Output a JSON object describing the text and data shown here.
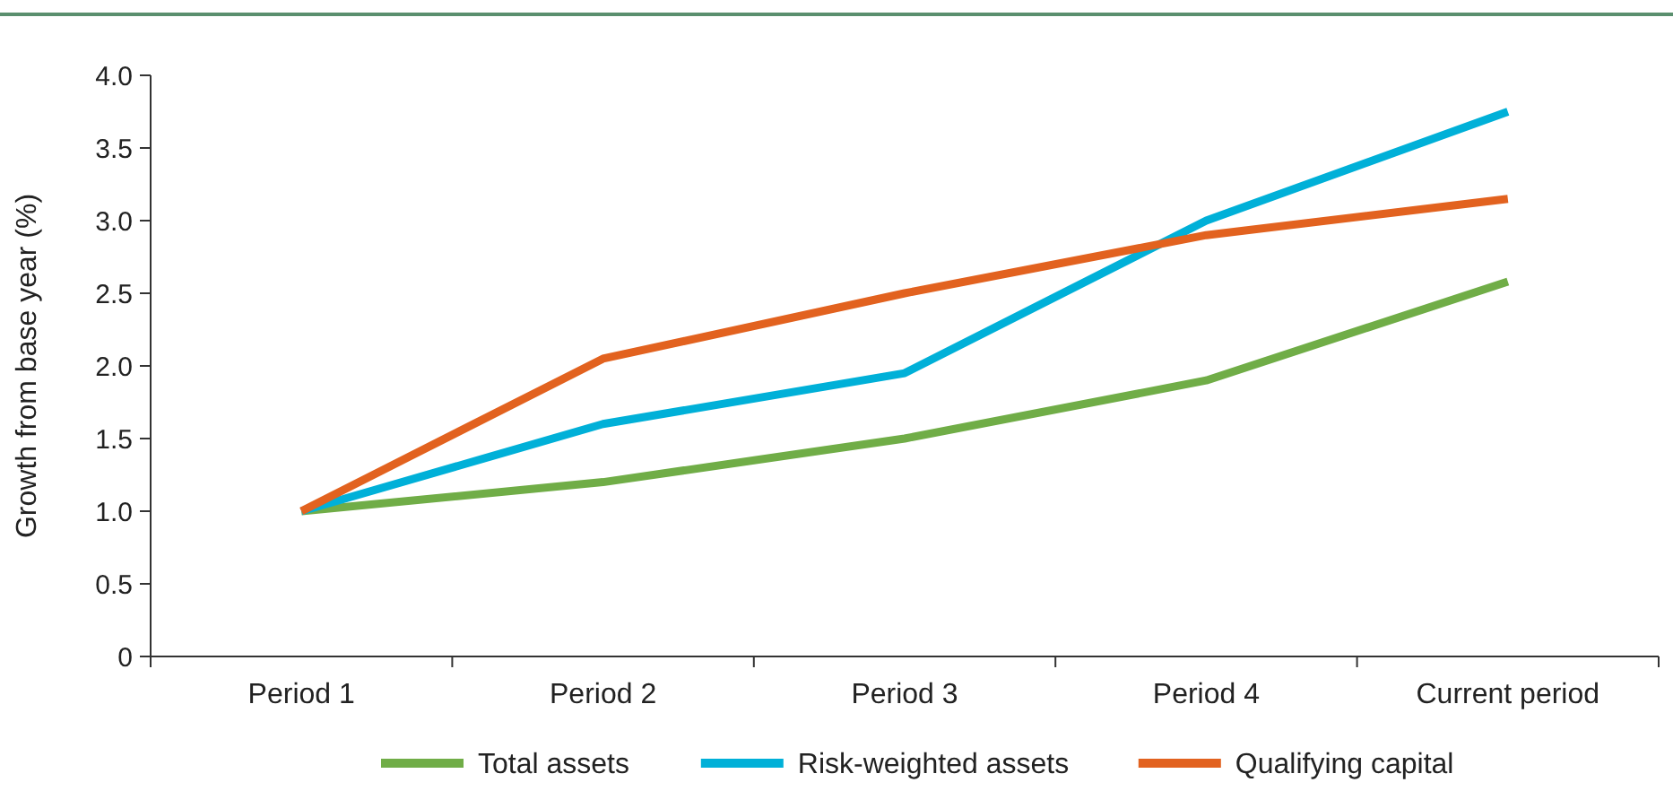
{
  "chart_data": {
    "type": "line",
    "ylabel": "Growth from base year (%)",
    "categories": [
      "Period 1",
      "Period 2",
      "Period 3",
      "Period 4",
      "Current period"
    ],
    "series": [
      {
        "name": "Total assets",
        "color": "#70ad47",
        "values": [
          1.0,
          1.2,
          1.5,
          1.9,
          2.58
        ]
      },
      {
        "name": "Risk-weighted assets",
        "color": "#00b0d8",
        "values": [
          1.0,
          1.6,
          1.95,
          3.0,
          3.75
        ]
      },
      {
        "name": "Qualifying capital",
        "color": "#e2621f",
        "values": [
          1.0,
          2.05,
          2.5,
          2.9,
          3.15
        ]
      }
    ],
    "ylim": [
      0,
      4
    ],
    "yticks": [
      0,
      0.5,
      {
        "value": 1,
        "label": "1.0"
      },
      1.5,
      {
        "value": 2,
        "label": "2.0"
      },
      2.5,
      {
        "value": 3,
        "label": "3.0"
      },
      3.5,
      {
        "value": 4,
        "label": "4.0"
      }
    ],
    "grid": false,
    "legend": "bottom",
    "marker": "none",
    "line_style": "solid"
  }
}
